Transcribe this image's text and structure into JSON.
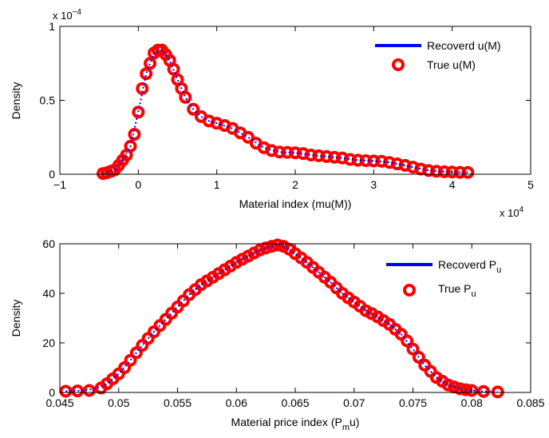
{
  "chart_data": [
    {
      "type": "line",
      "xlabel": "Material index (mu(M))",
      "ylabel": "Density",
      "x_exponent_label": "x 10",
      "x_exponent": "4",
      "y_exponent_label": "x 10",
      "y_exponent": "−4",
      "xlim": [
        -10000,
        50000
      ],
      "ylim": [
        0,
        0.0001
      ],
      "x_ticks": [
        -10000,
        0,
        10000,
        20000,
        30000,
        40000,
        50000
      ],
      "x_tick_labels": [
        "−1",
        "0",
        "1",
        "2",
        "3",
        "4",
        "5"
      ],
      "y_ticks": [
        0,
        5e-05,
        0.0001
      ],
      "y_tick_labels": [
        "0",
        "0.5",
        "1"
      ],
      "legend_position": "top-right",
      "colors": {
        "recovered": "#0000ff",
        "true": "#ff0000"
      },
      "series": [
        {
          "name": "Recoverd u(M)",
          "style": "line",
          "x": [
            -4500,
            -3000,
            -2000,
            -1000,
            0,
            1000,
            2000,
            3000,
            4000,
            5000,
            6000,
            7000,
            8000,
            9000,
            10000,
            12000,
            14000,
            16000,
            18000,
            20000,
            22000,
            24000,
            26000,
            28000,
            30000,
            32000,
            34000,
            36000,
            38000,
            40000,
            42000
          ],
          "y": [
            5e-07,
            3e-06,
            9.5e-06,
            1.9e-05,
            4.2e-05,
            6.8e-05,
            8.2e-05,
            8.4e-05,
            7.7e-05,
            6.4e-05,
            5.2e-05,
            4.4e-05,
            3.9e-05,
            3.6e-05,
            3.45e-05,
            3.1e-05,
            2.5e-05,
            1.8e-05,
            1.5e-05,
            1.45e-05,
            1.3e-05,
            1.2e-05,
            1.1e-05,
            9.5e-06,
            9e-06,
            8e-06,
            6e-06,
            3.5e-06,
            2e-06,
            1.5e-06,
            1.2e-06
          ]
        },
        {
          "name": "True u(M)",
          "style": "markers",
          "x": [
            -4500,
            -4000,
            -3500,
            -3000,
            -2500,
            -2000,
            -1500,
            -1000,
            -500,
            0,
            500,
            1000,
            1500,
            2000,
            2500,
            3000,
            3500,
            4000,
            4500,
            5000,
            5500,
            6000,
            7000,
            8000,
            9000,
            10000,
            11000,
            12000,
            13000,
            14000,
            15000,
            16000,
            17000,
            18000,
            19000,
            20000,
            21000,
            22000,
            23000,
            24000,
            25000,
            26000,
            27000,
            28000,
            29000,
            30000,
            31000,
            32000,
            33000,
            34000,
            35000,
            36000,
            37000,
            38000,
            39000,
            40000,
            41000,
            42000
          ],
          "y": [
            5e-07,
            1e-06,
            2e-06,
            3e-06,
            6e-06,
            9.5e-06,
            1.3e-05,
            1.9e-05,
            2.7e-05,
            4.2e-05,
            5.8e-05,
            6.8e-05,
            7.5e-05,
            8.2e-05,
            8.4e-05,
            8.4e-05,
            8.1e-05,
            7.7e-05,
            7.1e-05,
            6.4e-05,
            5.8e-05,
            5.2e-05,
            4.4e-05,
            3.9e-05,
            3.6e-05,
            3.45e-05,
            3.3e-05,
            3.1e-05,
            2.8e-05,
            2.5e-05,
            2.1e-05,
            1.8e-05,
            1.6e-05,
            1.5e-05,
            1.48e-05,
            1.45e-05,
            1.4e-05,
            1.3e-05,
            1.25e-05,
            1.2e-05,
            1.15e-05,
            1.1e-05,
            1e-05,
            9.5e-06,
            9.2e-06,
            9e-06,
            8.8e-06,
            8e-06,
            7e-06,
            6e-06,
            4.8e-06,
            3.5e-06,
            2.5e-06,
            2e-06,
            1.7e-06,
            1.5e-06,
            1.3e-06,
            1.2e-06
          ]
        }
      ]
    },
    {
      "type": "line",
      "xlabel": "Material price  index (P",
      "xlabel_sub": "m",
      "xlabel_tail": "u)",
      "ylabel": "Density",
      "xlim": [
        0.045,
        0.085
      ],
      "ylim": [
        0,
        60
      ],
      "x_ticks": [
        0.045,
        0.05,
        0.055,
        0.06,
        0.065,
        0.07,
        0.075,
        0.08,
        0.085
      ],
      "x_tick_labels": [
        "0.045",
        "0.05",
        "0.055",
        "0.06",
        "0.065",
        "0.07",
        "0.075",
        "0.08",
        "0.085"
      ],
      "y_ticks": [
        0,
        20,
        40,
        60
      ],
      "y_tick_labels": [
        "0",
        "20",
        "40",
        "60"
      ],
      "legend_position": "top-right",
      "colors": {
        "recovered": "#0000ff",
        "true": "#ff0000"
      },
      "series": [
        {
          "name": "Recoverd P",
          "name_sub": "u",
          "style": "line",
          "x": [
            0.0455,
            0.047,
            0.048,
            0.049,
            0.05,
            0.051,
            0.052,
            0.053,
            0.054,
            0.055,
            0.056,
            0.057,
            0.058,
            0.059,
            0.06,
            0.061,
            0.062,
            0.063,
            0.0635,
            0.064,
            0.065,
            0.066,
            0.067,
            0.068,
            0.069,
            0.07,
            0.071,
            0.072,
            0.073,
            0.074,
            0.075,
            0.076,
            0.077,
            0.078,
            0.079,
            0.08,
            0.081,
            0.0822
          ],
          "y": [
            0.5,
            0.8,
            1.5,
            3.5,
            7.5,
            13,
            19,
            24.5,
            29.5,
            34.5,
            39.5,
            43.5,
            46.5,
            49.5,
            52.5,
            55,
            57.5,
            59,
            59.5,
            59,
            56,
            52.5,
            48.5,
            44.5,
            40,
            36.5,
            33,
            30.5,
            27.5,
            23.5,
            17.5,
            11,
            6,
            3,
            1.5,
            0.8,
            0.4,
            0.2
          ]
        },
        {
          "name": "True P",
          "name_sub": "u",
          "style": "markers",
          "x": [
            0.0455,
            0.0465,
            0.0475,
            0.0485,
            0.049,
            0.0495,
            0.05,
            0.0505,
            0.051,
            0.0515,
            0.052,
            0.0525,
            0.053,
            0.0535,
            0.054,
            0.0545,
            0.055,
            0.0555,
            0.056,
            0.0565,
            0.057,
            0.0575,
            0.058,
            0.0585,
            0.059,
            0.0595,
            0.06,
            0.0605,
            0.061,
            0.0615,
            0.062,
            0.0625,
            0.063,
            0.0635,
            0.064,
            0.0645,
            0.065,
            0.0655,
            0.066,
            0.0665,
            0.067,
            0.0675,
            0.068,
            0.0685,
            0.069,
            0.0695,
            0.07,
            0.0705,
            0.071,
            0.0715,
            0.072,
            0.0725,
            0.073,
            0.0735,
            0.074,
            0.0745,
            0.075,
            0.0755,
            0.076,
            0.0765,
            0.077,
            0.0775,
            0.078,
            0.0785,
            0.079,
            0.0795,
            0.08,
            0.081,
            0.0822
          ],
          "y": [
            0.5,
            0.6,
            0.8,
            1.8,
            3.5,
            5.5,
            7.5,
            10,
            13,
            16,
            19,
            21.8,
            24.5,
            27,
            29.5,
            32,
            34.5,
            37,
            39.5,
            41.5,
            43.5,
            45,
            46.5,
            48,
            49.5,
            51,
            52.5,
            53.8,
            55,
            56.3,
            57.5,
            58.3,
            59,
            59.5,
            59,
            57.8,
            56,
            54.3,
            52.5,
            50.5,
            48.5,
            46.5,
            44.5,
            42.2,
            40,
            38.2,
            36.5,
            34.8,
            33,
            31.8,
            30.5,
            29,
            27.5,
            25.5,
            23.5,
            20.8,
            17.5,
            14.2,
            11,
            8.5,
            6,
            4.5,
            3,
            2.2,
            1.5,
            1.1,
            0.8,
            0.4,
            0.2
          ]
        }
      ]
    }
  ]
}
